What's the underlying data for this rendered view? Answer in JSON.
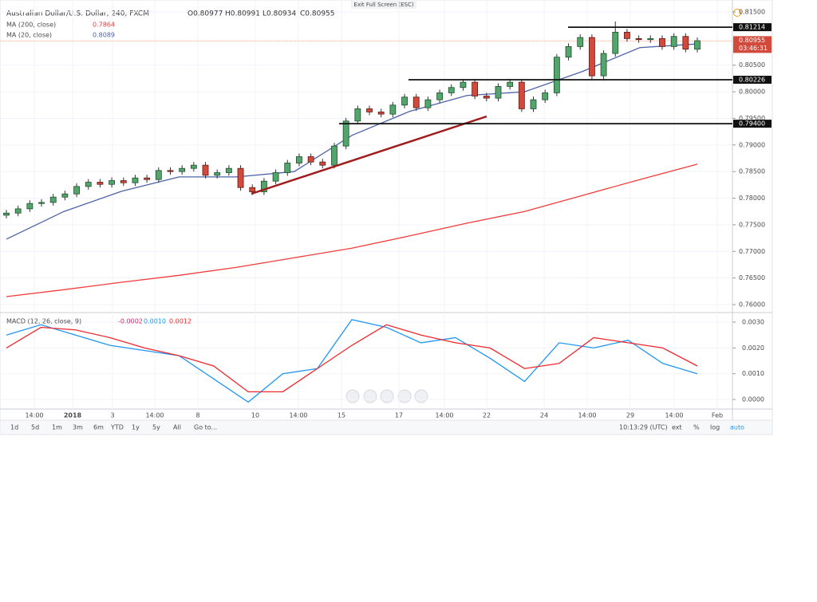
{
  "header": {
    "symbol": "Australian Dollar/U.S. Dollar, 240, FXCM",
    "ohlc": [
      "O0.80977",
      "H0.80991",
      "L0.80934",
      "C0.80955"
    ],
    "exit": "Exit Full Screen (ESC)"
  },
  "chart_data": {
    "type": "candlestick",
    "grid": true,
    "up_color": "#53a66b",
    "down_color": "#d24a3c",
    "open": [
      0.7768,
      0.7772,
      0.778,
      0.779,
      0.7792,
      0.7802,
      0.7808,
      0.7822,
      0.783,
      0.7826,
      0.7833,
      0.7829,
      0.7838,
      0.7835,
      0.7852,
      0.785,
      0.7856,
      0.7862,
      0.7843,
      0.7848,
      0.7856,
      0.782,
      0.7812,
      0.7832,
      0.7848,
      0.7866,
      0.7878,
      0.7868,
      0.7862,
      0.7898,
      0.7945,
      0.7968,
      0.7962,
      0.7958,
      0.7975,
      0.799,
      0.797,
      0.7985,
      0.7998,
      0.8008,
      0.8018,
      0.7992,
      0.7988,
      0.801,
      0.8018,
      0.7968,
      0.7985,
      0.7998,
      0.8065,
      0.8085,
      0.8102,
      0.803,
      0.8072,
      0.8112,
      0.81,
      0.8098,
      0.81,
      0.8085,
      0.8104,
      0.808
    ],
    "high": [
      0.7778,
      0.7786,
      0.7796,
      0.7798,
      0.7808,
      0.7814,
      0.7828,
      0.7836,
      0.7836,
      0.7839,
      0.7839,
      0.7844,
      0.7844,
      0.7858,
      0.7858,
      0.7862,
      0.7868,
      0.7868,
      0.7854,
      0.7862,
      0.7862,
      0.7826,
      0.7838,
      0.7854,
      0.7872,
      0.7884,
      0.7884,
      0.7874,
      0.7904,
      0.7951,
      0.7974,
      0.7974,
      0.7968,
      0.7981,
      0.7996,
      0.7996,
      0.7991,
      0.8004,
      0.8014,
      0.8024,
      0.8024,
      0.7998,
      0.8016,
      0.8024,
      0.8024,
      0.7991,
      0.8004,
      0.8071,
      0.8091,
      0.8108,
      0.8108,
      0.8078,
      0.8132,
      0.8118,
      0.8106,
      0.8106,
      0.8106,
      0.811,
      0.811,
      0.8102
    ],
    "low": [
      0.7762,
      0.7766,
      0.7774,
      0.7784,
      0.7786,
      0.7796,
      0.7802,
      0.7816,
      0.782,
      0.782,
      0.7823,
      0.7823,
      0.7829,
      0.7829,
      0.7844,
      0.7844,
      0.785,
      0.7837,
      0.7837,
      0.7842,
      0.7814,
      0.7806,
      0.7806,
      0.7826,
      0.7842,
      0.786,
      0.7862,
      0.7856,
      0.7856,
      0.7892,
      0.7939,
      0.7956,
      0.7952,
      0.7952,
      0.7969,
      0.7964,
      0.7964,
      0.7979,
      0.7992,
      0.8002,
      0.7986,
      0.7982,
      0.7982,
      0.8004,
      0.7962,
      0.7962,
      0.7979,
      0.7992,
      0.8059,
      0.8079,
      0.8024,
      0.8024,
      0.8066,
      0.8094,
      0.8092,
      0.8092,
      0.8079,
      0.8079,
      0.8074,
      0.8074
    ],
    "close": [
      0.7772,
      0.778,
      0.779,
      0.7792,
      0.7802,
      0.7808,
      0.7822,
      0.783,
      0.7826,
      0.7833,
      0.7829,
      0.7838,
      0.7835,
      0.7852,
      0.785,
      0.7856,
      0.7862,
      0.7843,
      0.7848,
      0.7856,
      0.782,
      0.7812,
      0.7832,
      0.7848,
      0.7866,
      0.7878,
      0.7868,
      0.7862,
      0.7898,
      0.7945,
      0.7968,
      0.7962,
      0.7958,
      0.7975,
      0.799,
      0.797,
      0.7985,
      0.7998,
      0.8008,
      0.8018,
      0.7992,
      0.7988,
      0.801,
      0.8018,
      0.7968,
      0.7985,
      0.7998,
      0.8065,
      0.8085,
      0.8102,
      0.803,
      0.8072,
      0.8112,
      0.81,
      0.8098,
      0.81,
      0.8085,
      0.8104,
      0.808,
      0.8096
    ],
    "ylim": [
      0.7585,
      0.8165
    ],
    "yticks": [
      {
        "value": 0.815,
        "label": "0.81500"
      },
      {
        "value": 0.805,
        "label": "0.80500"
      },
      {
        "value": 0.8,
        "label": "0.80000"
      },
      {
        "value": 0.795,
        "label": "0.79500"
      },
      {
        "value": 0.79,
        "label": "0.79000"
      },
      {
        "value": 0.785,
        "label": "0.78500"
      },
      {
        "value": 0.78,
        "label": "0.78000"
      },
      {
        "value": 0.775,
        "label": "0.77500"
      },
      {
        "value": 0.77,
        "label": "0.77000"
      },
      {
        "value": 0.765,
        "label": "0.76500"
      },
      {
        "value": 0.76,
        "label": "0.76000"
      }
    ],
    "last_price": {
      "value": 0.80955,
      "label": "0.80955",
      "countdown": "03:46:31"
    },
    "levels": [
      {
        "value": 0.81214,
        "label": "0.81214"
      },
      {
        "value": 0.80226,
        "label": "0.80226"
      },
      {
        "value": 0.794,
        "label": "0.79400"
      }
    ],
    "series": [
      {
        "name": "MA (200, close)",
        "color": "#f23b3b",
        "legend_value": "0.7864",
        "values": [
          0.7615,
          0.7628,
          0.7642,
          0.7655,
          0.767,
          0.7688,
          0.7706,
          0.7729,
          0.7753,
          0.7775,
          0.7805,
          0.7835,
          0.7864
        ]
      },
      {
        "name": "MA (20, close)",
        "color": "#4d63a8",
        "legend_value": "0.8089",
        "values": [
          0.7723,
          0.7775,
          0.7813,
          0.784,
          0.784,
          0.785,
          0.7918,
          0.7963,
          0.7993,
          0.8,
          0.8038,
          0.8083,
          0.809
        ]
      }
    ],
    "time_labels": [
      "14:00",
      "2018",
      "3",
      "14:00",
      "8",
      "10",
      "14:00",
      "15",
      "17",
      "14:00",
      "22",
      "24",
      "14:00",
      "29",
      "14:00",
      "Feb"
    ]
  },
  "macd": {
    "type": "line",
    "title": "MACD (12, 26, close, 9)",
    "readouts": [
      "-0.0002",
      "0.0010",
      "0.0012"
    ],
    "ylim": [
      -0.00037,
      0.00328
    ],
    "yticks": [
      {
        "value": 0.003,
        "label": "0.0030"
      },
      {
        "value": 0.002,
        "label": "0.0020"
      },
      {
        "value": 0.001,
        "label": "0.0010"
      },
      {
        "value": 0,
        "label": "0.0000"
      }
    ],
    "series": [
      {
        "color": "#2196f3",
        "values": [
          0.0025,
          0.0029,
          0.0025,
          0.0021,
          0.0019,
          0.0017,
          0.0008,
          -0.0001,
          0.001,
          0.0012,
          0.0031,
          0.0028,
          0.0022,
          0.0024,
          0.0016,
          0.0007,
          0.0022,
          0.002,
          0.0023,
          0.0014,
          0.001
        ]
      },
      {
        "color": "#f0282d",
        "values": [
          0.002,
          0.0028,
          0.0027,
          0.0024,
          0.002,
          0.0017,
          0.0013,
          0.0003,
          0.0003,
          0.0012,
          0.0021,
          0.0029,
          0.0025,
          0.0022,
          0.002,
          0.0012,
          0.0014,
          0.0024,
          0.0022,
          0.002,
          0.0013
        ]
      }
    ]
  },
  "toolbar": {
    "ranges": [
      "1d",
      "5d",
      "1m",
      "3m",
      "6m",
      "YTD",
      "1y",
      "5y",
      "All"
    ],
    "goto": "Go to...",
    "time": "10:13:29 (UTC)",
    "options": [
      "ext",
      "%",
      "log",
      "auto"
    ]
  }
}
